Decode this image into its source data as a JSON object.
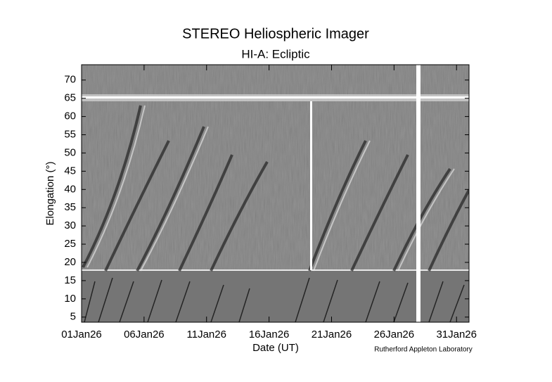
{
  "chart_data": {
    "type": "jmap",
    "title": "STEREO Heliospheric Imager",
    "subtitle": "HI-A: Ecliptic",
    "xlabel": "Date (UT)",
    "ylabel": "Elongation (°)",
    "credit": "Rutherford Appleton Laboratory",
    "xlim": [
      "2026-01-01",
      "2026-02-01"
    ],
    "xticks": [
      {
        "value": "2026-01-01",
        "label": "01Jan26"
      },
      {
        "value": "2026-01-06",
        "label": "06Jan26"
      },
      {
        "value": "2026-01-11",
        "label": "11Jan26"
      },
      {
        "value": "2026-01-16",
        "label": "16Jan26"
      },
      {
        "value": "2026-01-21",
        "label": "21Jan26"
      },
      {
        "value": "2026-01-26",
        "label": "26Jan26"
      },
      {
        "value": "2026-01-31",
        "label": "31Jan26"
      }
    ],
    "ylim": [
      3.6,
      74.2
    ],
    "yticks": [
      5,
      10,
      15,
      20,
      25,
      30,
      35,
      40,
      45,
      50,
      55,
      60,
      65,
      70
    ]
  }
}
